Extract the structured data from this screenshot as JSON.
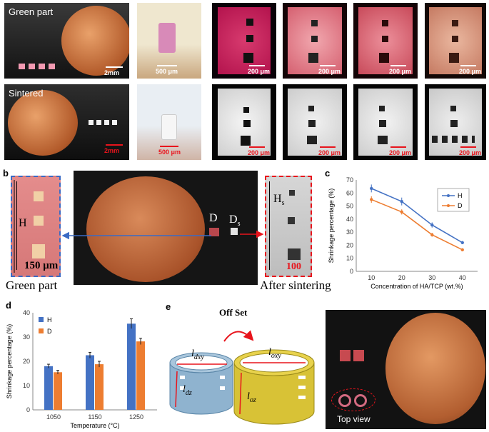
{
  "panels": {
    "a": {
      "label": "a",
      "row1_tag": "Green part",
      "row2_tag": "Sintered",
      "row1_scales": [
        "2mm",
        "500 μm",
        "200 μm",
        "200 μm",
        "200 μm",
        "200 μm"
      ],
      "row2_scales": [
        "2mm",
        "500 μm",
        "200 μm",
        "200 μm",
        "200 μm",
        "200 μm"
      ]
    },
    "b": {
      "label": "b",
      "left_scale": "150 μm",
      "right_scale": "100 μm",
      "H": "H",
      "Hs": "H",
      "Hs_sub": "s",
      "D": "D",
      "Ds": "D",
      "Ds_sub": "s",
      "caption_left": "Green part",
      "caption_right": "After sintering"
    },
    "c": {
      "label": "c"
    },
    "d": {
      "label": "d"
    },
    "e": {
      "label": "e",
      "offset": "Off Set",
      "l_dxy": "l",
      "l_dxy_sub": "dxy",
      "l_dz": "l",
      "l_dz_sub": "dz",
      "l_oxy": "l",
      "l_oxy_sub": "oxy",
      "l_oz": "l",
      "l_oz_sub": "oz",
      "top_view": "Top view"
    }
  },
  "chart_data": [
    {
      "type": "line",
      "panel": "c",
      "xlabel": "Concentration of HA/TCP (wt.%)",
      "ylabel": "Shrinkage percentage (%)",
      "x": [
        10,
        20,
        30,
        40
      ],
      "xlim": [
        5,
        45
      ],
      "ylim": [
        0,
        70
      ],
      "yticks": [
        0,
        10,
        20,
        30,
        40,
        50,
        60,
        70
      ],
      "legend_position": "top-right",
      "series": [
        {
          "name": "H",
          "color": "#4472c4",
          "values": [
            63.5,
            53.5,
            35.5,
            22
          ],
          "errors": [
            3,
            3,
            2,
            1.2
          ]
        },
        {
          "name": "D",
          "color": "#ed7d31",
          "values": [
            55,
            45.5,
            28,
            16.5
          ],
          "errors": [
            2.5,
            2,
            1.5,
            1
          ]
        }
      ]
    },
    {
      "type": "bar",
      "panel": "d",
      "xlabel": "Temperature (°C)",
      "ylabel": "Shrinkage percentage (%)",
      "categories": [
        "1050",
        "1150",
        "1250"
      ],
      "ylim": [
        0,
        40
      ],
      "yticks": [
        0,
        10,
        20,
        30,
        40
      ],
      "legend_position": "top-left",
      "series": [
        {
          "name": "H",
          "color": "#4472c4",
          "values": [
            18,
            22.5,
            35.5
          ],
          "errors": [
            0.8,
            1.2,
            2
          ]
        },
        {
          "name": "D",
          "color": "#ed7d31",
          "values": [
            15.5,
            18.8,
            28.2
          ],
          "errors": [
            0.8,
            1.2,
            1.3
          ]
        }
      ]
    }
  ]
}
